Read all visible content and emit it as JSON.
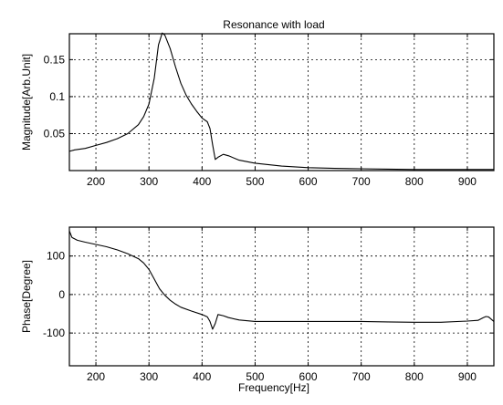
{
  "chart_data": [
    {
      "type": "line",
      "title": "Resonance with load",
      "xlabel": "",
      "ylabel": "Magnitude[Arb.Unit]",
      "xlim": [
        150,
        950
      ],
      "ylim": [
        0,
        0.185
      ],
      "grid": true,
      "xticks": [
        200,
        300,
        400,
        500,
        600,
        700,
        800,
        900
      ],
      "xtick_labels": [
        "200",
        "300",
        "400",
        "500",
        "600",
        "700",
        "800",
        "900"
      ],
      "yticks": [
        0.05,
        0.1,
        0.15
      ],
      "ytick_labels": [
        "0.05",
        "0.1",
        "0.15"
      ],
      "series": [
        {
          "x": [
            150,
            160,
            180,
            200,
            220,
            240,
            260,
            280,
            290,
            300,
            310,
            318,
            325,
            330,
            340,
            350,
            360,
            370,
            380,
            390,
            400,
            410,
            415,
            420,
            425,
            430,
            440,
            450,
            470,
            500,
            550,
            600,
            650,
            700,
            750,
            800,
            850,
            900,
            950
          ],
          "y": [
            0.026,
            0.028,
            0.03,
            0.034,
            0.038,
            0.043,
            0.05,
            0.062,
            0.073,
            0.09,
            0.125,
            0.17,
            0.186,
            0.183,
            0.165,
            0.14,
            0.118,
            0.102,
            0.09,
            0.08,
            0.071,
            0.066,
            0.057,
            0.035,
            0.015,
            0.018,
            0.022,
            0.02,
            0.014,
            0.01,
            0.006,
            0.004,
            0.003,
            0.0025,
            0.002,
            0.0015,
            0.0015,
            0.0015,
            0.0015
          ]
        }
      ]
    },
    {
      "type": "line",
      "title": "",
      "xlabel": "Frequency[Hz]",
      "ylabel": "Phase[Degree]",
      "xlim": [
        150,
        950
      ],
      "ylim": [
        -185,
        175
      ],
      "grid": true,
      "xticks": [
        200,
        300,
        400,
        500,
        600,
        700,
        800,
        900
      ],
      "xtick_labels": [
        "200",
        "300",
        "400",
        "500",
        "600",
        "700",
        "800",
        "900"
      ],
      "yticks": [
        -100,
        0,
        100
      ],
      "ytick_labels": [
        "-100",
        "0",
        "100"
      ],
      "series": [
        {
          "x": [
            150,
            155,
            165,
            180,
            200,
            220,
            240,
            260,
            280,
            290,
            300,
            310,
            320,
            330,
            340,
            350,
            360,
            380,
            400,
            410,
            415,
            420,
            425,
            430,
            440,
            450,
            470,
            500,
            550,
            600,
            650,
            700,
            750,
            800,
            850,
            900,
            920,
            930,
            935,
            940,
            950
          ],
          "y": [
            165,
            148,
            141,
            136,
            130,
            124,
            116,
            106,
            93,
            82,
            65,
            40,
            15,
            -2,
            -15,
            -25,
            -33,
            -43,
            -52,
            -58,
            -70,
            -90,
            -75,
            -52,
            -55,
            -60,
            -66,
            -70,
            -70,
            -70,
            -70,
            -70,
            -71,
            -72,
            -72,
            -69,
            -67,
            -60,
            -57,
            -58,
            -70
          ]
        }
      ]
    }
  ]
}
